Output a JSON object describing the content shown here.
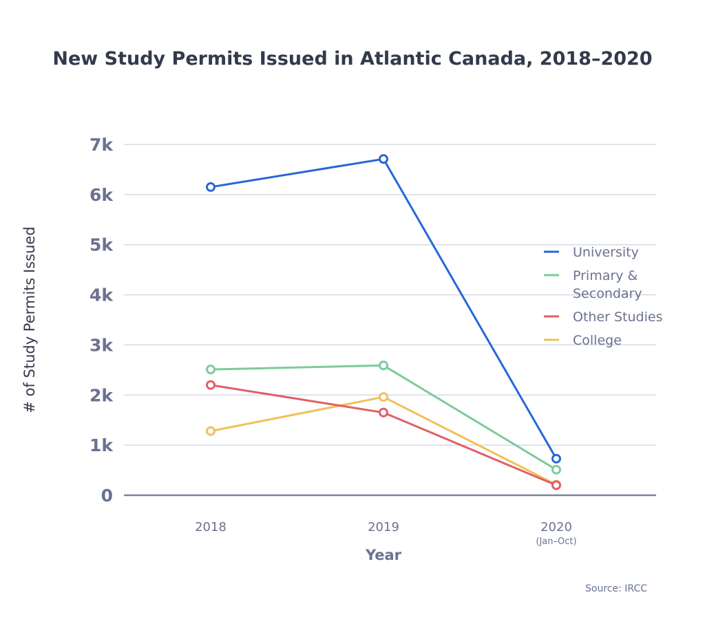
{
  "chart_data": {
    "type": "line",
    "title": "New Study Permits Issued in Atlantic Canada, 2018–2020",
    "xlabel": "Year",
    "ylabel": "# of Study Permits Issued",
    "categories": [
      "2018",
      "2019",
      "2020"
    ],
    "category_sublabels": [
      "",
      "",
      "(Jan–Oct)"
    ],
    "yticks": [
      "0",
      "1k",
      "2k",
      "3k",
      "4k",
      "5k",
      "6k",
      "7k"
    ],
    "ylim": [
      0,
      7000
    ],
    "grid": true,
    "legend_position": "right",
    "series": [
      {
        "name": "University",
        "color": "#2766d9",
        "values": [
          6150,
          6710,
          730
        ]
      },
      {
        "name": "Primary & Secondary",
        "name_lines": [
          "Primary &",
          "Secondary"
        ],
        "color": "#7ccb9a",
        "values": [
          2510,
          2590,
          510
        ]
      },
      {
        "name": "Other Studies",
        "color": "#e15f66",
        "values": [
          2200,
          1650,
          200
        ]
      },
      {
        "name": "College",
        "color": "#f0c05a",
        "values": [
          1280,
          1960,
          210
        ]
      }
    ],
    "source": "Source: IRCC"
  }
}
